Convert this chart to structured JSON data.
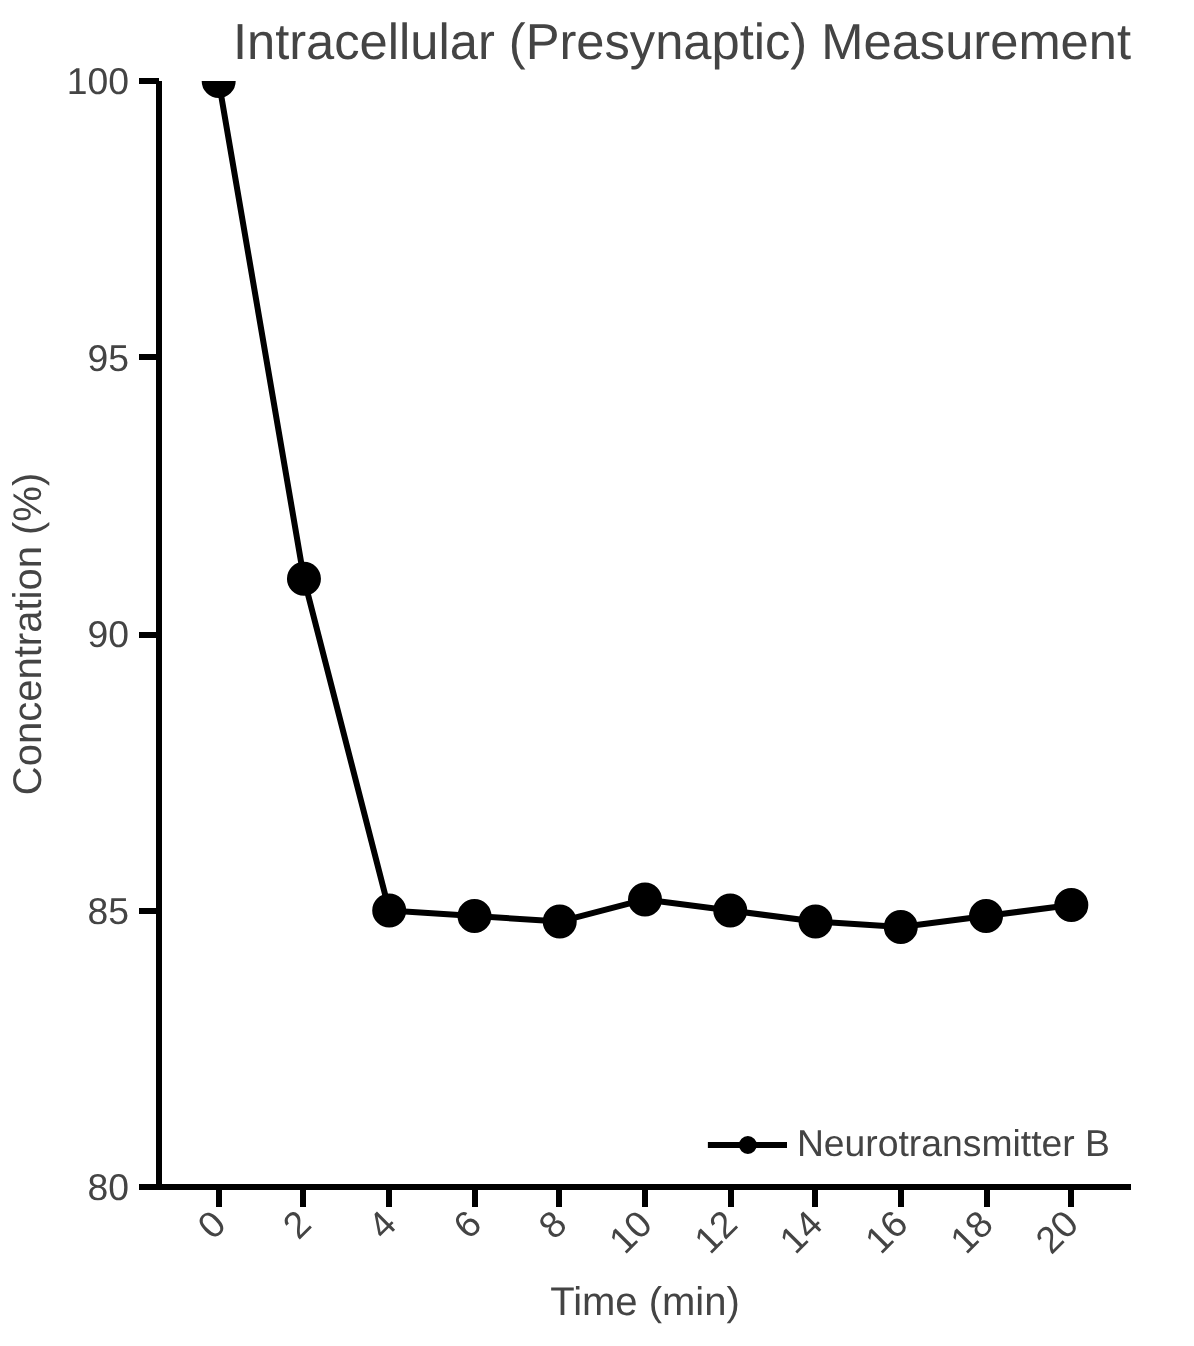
{
  "chart_data": {
    "type": "line",
    "title": "Intracellular (Presynaptic) Measurement",
    "xlabel": "Time (min)",
    "ylabel": "Concentration (%)",
    "x": [
      0,
      2,
      4,
      6,
      8,
      10,
      12,
      14,
      16,
      18,
      20
    ],
    "series": [
      {
        "name": "Neurotransmitter B",
        "color": "#000000",
        "values": [
          100,
          91,
          85,
          84.9,
          84.8,
          85.2,
          85,
          84.8,
          84.7,
          84.9,
          85.1
        ]
      }
    ],
    "xlim": [
      -1.4,
      21.4
    ],
    "ylim": [
      80,
      100
    ],
    "xticks": [
      0,
      2,
      4,
      6,
      8,
      10,
      12,
      14,
      16,
      18,
      20
    ],
    "yticks": [
      80,
      85,
      90,
      95,
      100
    ],
    "marker": "circle",
    "line_style": "solid",
    "grid": false,
    "legend": "bottom right"
  }
}
